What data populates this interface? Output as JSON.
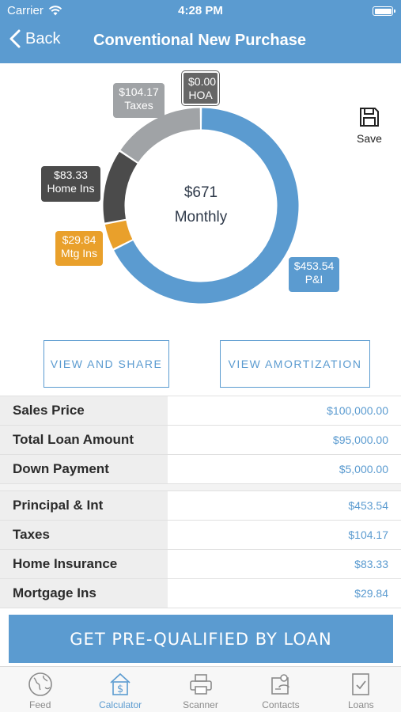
{
  "status_bar": {
    "carrier": "Carrier",
    "time": "4:28 PM"
  },
  "nav": {
    "back_label": "Back",
    "title": "Conventional New Purchase"
  },
  "chart_data": {
    "type": "pie",
    "style": "donut",
    "center_amount": "$671",
    "center_unit": "Monthly",
    "slices": [
      {
        "name": "P&I",
        "label": "$453.54",
        "value": 453.54,
        "color": "#5b9bd0"
      },
      {
        "name": "Mtg Ins",
        "label": "$29.84",
        "value": 29.84,
        "color": "#e9a02b"
      },
      {
        "name": "Home Ins",
        "label": "$83.33",
        "value": 83.33,
        "color": "#4b4b4b"
      },
      {
        "name": "Taxes",
        "label": "$104.17",
        "value": 104.17,
        "color": "#a0a3a6"
      },
      {
        "name": "HOA",
        "label": "$0.00",
        "value": 0.0,
        "color": "#666666"
      }
    ]
  },
  "save_label": "Save",
  "actions": {
    "view_share": "VIEW AND SHARE",
    "view_amortization": "VIEW AMORTIZATION"
  },
  "loan_summary": [
    {
      "label": "Sales Price",
      "value": "$100,000.00"
    },
    {
      "label": "Total Loan Amount",
      "value": "$95,000.00"
    },
    {
      "label": "Down Payment",
      "value": "$5,000.00"
    }
  ],
  "payment_breakdown": [
    {
      "label": "Principal & Int",
      "value": "$453.54"
    },
    {
      "label": "Taxes",
      "value": "$104.17"
    },
    {
      "label": "Home Insurance",
      "value": "$83.33"
    },
    {
      "label": "Mortgage Ins",
      "value": "$29.84"
    }
  ],
  "cta_label": "GET PRE-QUALIFIED BY LOAN",
  "tabs": [
    {
      "label": "Feed",
      "icon": "globe-icon"
    },
    {
      "label": "Calculator",
      "icon": "calculator-icon",
      "active": true
    },
    {
      "label": "Scanner",
      "icon": "printer-icon"
    },
    {
      "label": "Contacts",
      "icon": "contacts-icon"
    },
    {
      "label": "Loans",
      "icon": "document-check-icon"
    }
  ],
  "colors": {
    "brand": "#5b9bd0",
    "label_bg": "#eeeeee"
  }
}
